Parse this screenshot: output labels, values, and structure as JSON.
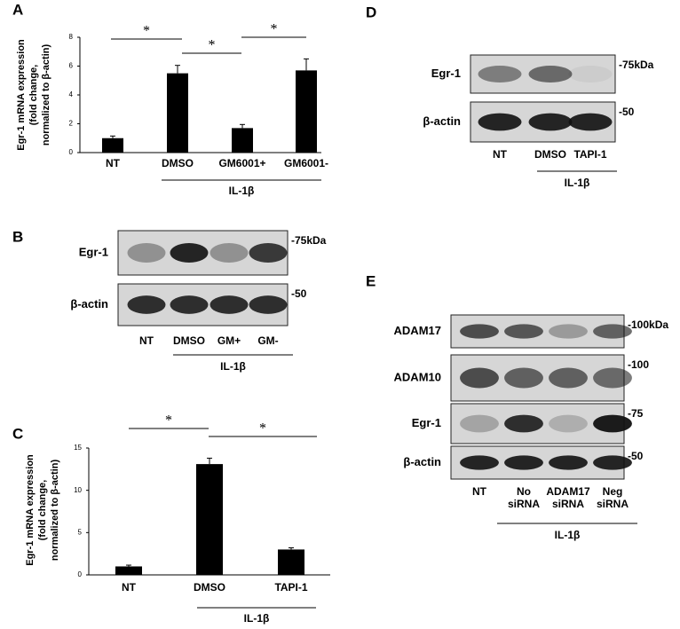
{
  "chart_data": [
    {
      "type": "bar",
      "panel": "A",
      "y_label": [
        "Egr-1 mRNA expression",
        "(fold change,",
        "normalized to β-actin)"
      ],
      "categories": [
        "NT",
        "DMSO",
        "GM6001+",
        "GM6001-"
      ],
      "values": [
        1.0,
        5.5,
        1.7,
        5.7
      ],
      "errors": [
        0.15,
        0.55,
        0.25,
        0.8
      ],
      "color": "#000000",
      "ylim": [
        0,
        8
      ],
      "yticks": [
        0,
        2,
        4,
        6,
        8
      ],
      "group_label": "IL-1β",
      "significance": [
        {
          "label": "*",
          "between": [
            "NT",
            "DMSO"
          ]
        },
        {
          "label": "*",
          "between": [
            "DMSO",
            "GM6001+"
          ]
        },
        {
          "label": "*",
          "between": [
            "GM6001+",
            "GM6001-"
          ]
        }
      ]
    },
    {
      "type": "bar",
      "panel": "C",
      "y_label": [
        "Egr-1 mRNA expression",
        "(fold change,",
        "normalized to β-actin)"
      ],
      "categories": [
        "NT",
        "DMSO",
        "TAPI-1"
      ],
      "values": [
        1.0,
        13.1,
        3.0
      ],
      "errors": [
        0.15,
        0.7,
        0.2
      ],
      "color": "#000000",
      "ylim": [
        0,
        15
      ],
      "yticks": [
        0,
        5,
        10,
        15
      ],
      "group_label": "IL-1β",
      "significance": [
        {
          "label": "*",
          "between": [
            "NT",
            "DMSO"
          ]
        },
        {
          "label": "*",
          "between": [
            "DMSO",
            "TAPI-1"
          ]
        }
      ]
    }
  ],
  "blots": [
    {
      "panel": "B",
      "rows": [
        {
          "label": "Egr-1",
          "marker": "-75kDa"
        },
        {
          "label": "β-actin",
          "marker": "-50"
        }
      ],
      "lanes": [
        [
          "NT"
        ],
        [
          "DMSO"
        ],
        [
          "GM+"
        ],
        [
          "GM-"
        ]
      ],
      "group_label": "IL-1β"
    },
    {
      "panel": "D",
      "rows": [
        {
          "label": "Egr-1",
          "marker": "-75kDa"
        },
        {
          "label": "β-actin",
          "marker": "-50"
        }
      ],
      "lanes": [
        [
          "NT"
        ],
        [
          "DMSO"
        ],
        [
          "TAPI-1"
        ]
      ],
      "group_label": "IL-1β"
    },
    {
      "panel": "E",
      "rows": [
        {
          "label": "ADAM17",
          "marker": "-100kDa"
        },
        {
          "label": "ADAM10",
          "marker": "-100"
        },
        {
          "label": "Egr-1",
          "marker": "-75"
        },
        {
          "label": "β-actin",
          "marker": "-50"
        }
      ],
      "lanes": [
        [
          "NT"
        ],
        [
          "No",
          "siRNA"
        ],
        [
          "ADAM17",
          "siRNA"
        ],
        [
          "Neg",
          "siRNA"
        ]
      ],
      "group_label": "IL-1β"
    }
  ]
}
